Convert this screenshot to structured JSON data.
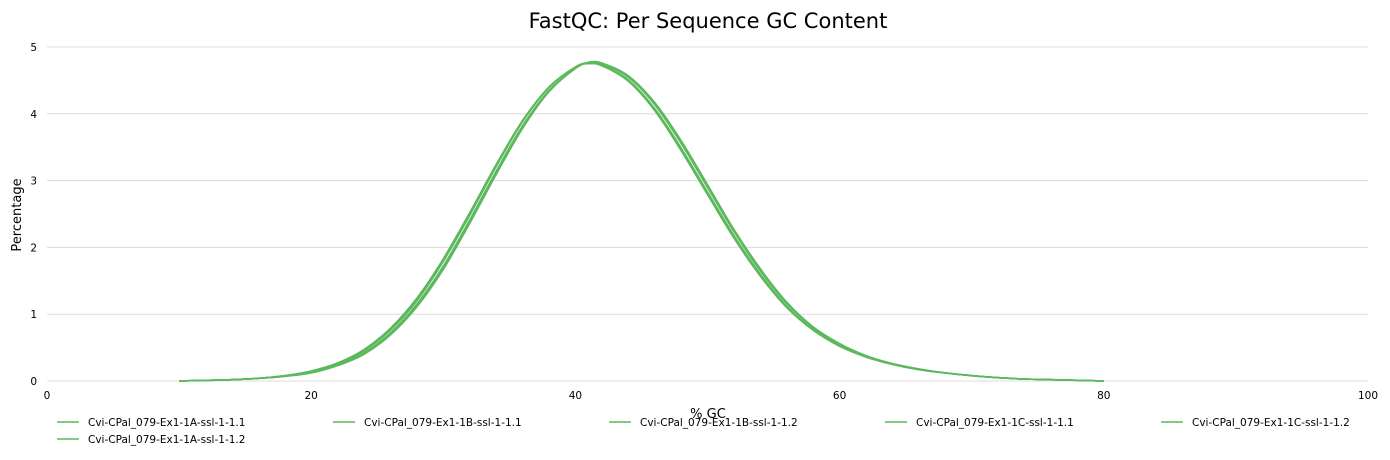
{
  "chart_data": {
    "type": "line",
    "title": "FastQC: Per Sequence GC Content",
    "xlabel": "% GC",
    "ylabel": "Percentage",
    "xlim": [
      0,
      100
    ],
    "ylim": [
      0,
      5
    ],
    "x_ticks": [
      "0",
      "20",
      "40",
      "60",
      "80",
      "100"
    ],
    "y_ticks": [
      "0",
      "1",
      "2",
      "3",
      "4",
      "5"
    ],
    "grid": true,
    "legend_position": "bottom",
    "line_color": "#5cb85c",
    "x": [
      10,
      12,
      14,
      16,
      18,
      20,
      22,
      24,
      26,
      28,
      30,
      32,
      34,
      36,
      38,
      40,
      41,
      42,
      44,
      46,
      48,
      50,
      52,
      54,
      56,
      58,
      60,
      62,
      64,
      66,
      68,
      70,
      72,
      74,
      76,
      78,
      80
    ],
    "series": [
      {
        "name": "Cvi-CPal_079-Ex1-1A-ssl-1-1.1",
        "values": [
          0.0,
          0.01,
          0.02,
          0.04,
          0.08,
          0.15,
          0.27,
          0.47,
          0.79,
          1.24,
          1.83,
          2.52,
          3.24,
          3.9,
          4.4,
          4.7,
          4.75,
          4.72,
          4.49,
          4.05,
          3.45,
          2.79,
          2.14,
          1.57,
          1.1,
          0.76,
          0.52,
          0.36,
          0.25,
          0.17,
          0.12,
          0.08,
          0.05,
          0.03,
          0.02,
          0.01,
          0.0
        ]
      },
      {
        "name": "Cvi-CPal_079-Ex1-1B-ssl-1-1.1",
        "values": [
          0.0,
          0.01,
          0.02,
          0.04,
          0.07,
          0.13,
          0.24,
          0.42,
          0.72,
          1.15,
          1.72,
          2.41,
          3.14,
          3.82,
          4.35,
          4.68,
          4.76,
          4.75,
          4.55,
          4.14,
          3.56,
          2.9,
          2.24,
          1.65,
          1.16,
          0.8,
          0.55,
          0.37,
          0.26,
          0.18,
          0.12,
          0.08,
          0.05,
          0.03,
          0.02,
          0.01,
          0.0
        ]
      },
      {
        "name": "Cvi-CPal_079-Ex1-1B-ssl-1-1.2",
        "values": [
          0.0,
          0.01,
          0.02,
          0.04,
          0.07,
          0.12,
          0.23,
          0.4,
          0.69,
          1.11,
          1.67,
          2.36,
          3.09,
          3.78,
          4.33,
          4.68,
          4.77,
          4.76,
          4.57,
          4.17,
          3.6,
          2.94,
          2.27,
          1.68,
          1.18,
          0.81,
          0.56,
          0.38,
          0.26,
          0.18,
          0.12,
          0.08,
          0.05,
          0.03,
          0.02,
          0.01,
          0.0
        ]
      },
      {
        "name": "Cvi-CPal_079-Ex1-1C-ssl-1-1.1",
        "values": [
          0.0,
          0.01,
          0.02,
          0.04,
          0.08,
          0.14,
          0.26,
          0.45,
          0.76,
          1.2,
          1.79,
          2.48,
          3.21,
          3.88,
          4.39,
          4.7,
          4.76,
          4.73,
          4.51,
          4.08,
          3.49,
          2.83,
          2.18,
          1.6,
          1.12,
          0.77,
          0.53,
          0.36,
          0.25,
          0.17,
          0.12,
          0.08,
          0.05,
          0.03,
          0.02,
          0.01,
          0.0
        ]
      },
      {
        "name": "Cvi-CPal_079-Ex1-1C-ssl-1-1.2",
        "values": [
          0.0,
          0.01,
          0.02,
          0.04,
          0.07,
          0.13,
          0.24,
          0.42,
          0.71,
          1.14,
          1.71,
          2.4,
          3.13,
          3.81,
          4.34,
          4.68,
          4.77,
          4.75,
          4.55,
          4.14,
          3.56,
          2.9,
          2.24,
          1.65,
          1.16,
          0.8,
          0.55,
          0.37,
          0.26,
          0.18,
          0.12,
          0.08,
          0.05,
          0.03,
          0.02,
          0.01,
          0.0
        ]
      },
      {
        "name": "Cvi-CPal_079-Ex1-1A-ssl-1-1.2",
        "values": [
          0.0,
          0.01,
          0.02,
          0.04,
          0.08,
          0.15,
          0.27,
          0.46,
          0.78,
          1.23,
          1.82,
          2.51,
          3.23,
          3.89,
          4.4,
          4.7,
          4.75,
          4.72,
          4.49,
          4.06,
          3.46,
          2.8,
          2.15,
          1.58,
          1.11,
          0.77,
          0.53,
          0.36,
          0.25,
          0.17,
          0.12,
          0.08,
          0.05,
          0.03,
          0.02,
          0.01,
          0.0
        ]
      }
    ]
  }
}
